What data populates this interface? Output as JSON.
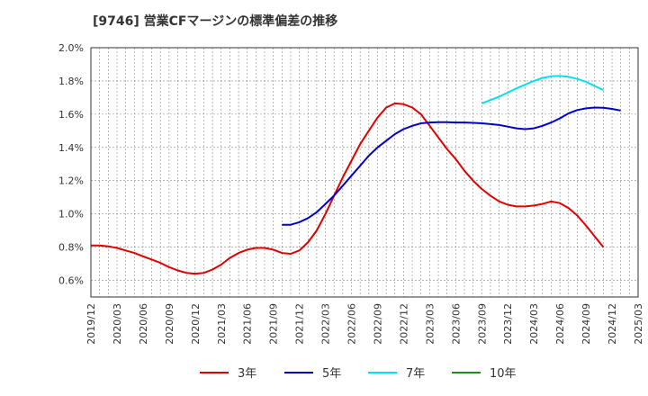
{
  "title": "[9746]  営業CFマージンの標準偏差の推移",
  "chart_data": {
    "type": "line",
    "title": "[9746]  営業CFマージンの標準偏差の推移",
    "xlabel": "",
    "ylabel": "",
    "ylim": [
      0.5,
      2.0
    ],
    "x_ticks": [
      "2019/12",
      "2020/03",
      "2020/06",
      "2020/09",
      "2020/12",
      "2021/03",
      "2021/06",
      "2021/09",
      "2021/12",
      "2022/03",
      "2022/06",
      "2022/09",
      "2022/12",
      "2023/03",
      "2023/06",
      "2023/09",
      "2023/12",
      "2024/03",
      "2024/06",
      "2024/09",
      "2024/12",
      "2025/03"
    ],
    "y_ticks": [
      "0.6%",
      "0.8%",
      "1.0%",
      "1.2%",
      "1.4%",
      "1.6%",
      "1.8%",
      "2.0%"
    ],
    "y_tick_values": [
      0.6,
      0.8,
      1.0,
      1.2,
      1.4,
      1.6,
      1.8,
      2.0
    ],
    "grid": true,
    "legend_position": "bottom",
    "series": [
      {
        "name": "3年",
        "color": "#e00000",
        "points": [
          [
            "2019/12",
            0.81
          ],
          [
            "2020/01",
            0.81
          ],
          [
            "2020/02",
            0.805
          ],
          [
            "2020/03",
            0.795
          ],
          [
            "2020/04",
            0.78
          ],
          [
            "2020/05",
            0.765
          ],
          [
            "2020/06",
            0.745
          ],
          [
            "2020/07",
            0.725
          ],
          [
            "2020/08",
            0.705
          ],
          [
            "2020/09",
            0.68
          ],
          [
            "2020/10",
            0.66
          ],
          [
            "2020/11",
            0.645
          ],
          [
            "2020/12",
            0.64
          ],
          [
            "2021/01",
            0.645
          ],
          [
            "2021/02",
            0.665
          ],
          [
            "2021/03",
            0.695
          ],
          [
            "2021/04",
            0.735
          ],
          [
            "2021/05",
            0.765
          ],
          [
            "2021/06",
            0.785
          ],
          [
            "2021/07",
            0.795
          ],
          [
            "2021/08",
            0.795
          ],
          [
            "2021/09",
            0.785
          ],
          [
            "2021/10",
            0.765
          ],
          [
            "2021/11",
            0.76
          ],
          [
            "2021/12",
            0.78
          ],
          [
            "2022/01",
            0.83
          ],
          [
            "2022/02",
            0.9
          ],
          [
            "2022/03",
            1.0
          ],
          [
            "2022/04",
            1.11
          ],
          [
            "2022/05",
            1.22
          ],
          [
            "2022/06",
            1.32
          ],
          [
            "2022/07",
            1.42
          ],
          [
            "2022/08",
            1.5
          ],
          [
            "2022/09",
            1.58
          ],
          [
            "2022/10",
            1.64
          ],
          [
            "2022/11",
            1.665
          ],
          [
            "2022/12",
            1.66
          ],
          [
            "2023/01",
            1.64
          ],
          [
            "2023/02",
            1.6
          ],
          [
            "2023/03",
            1.53
          ],
          [
            "2023/04",
            1.46
          ],
          [
            "2023/05",
            1.39
          ],
          [
            "2023/06",
            1.33
          ],
          [
            "2023/07",
            1.26
          ],
          [
            "2023/08",
            1.2
          ],
          [
            "2023/09",
            1.15
          ],
          [
            "2023/10",
            1.11
          ],
          [
            "2023/11",
            1.075
          ],
          [
            "2023/12",
            1.055
          ],
          [
            "2024/01",
            1.045
          ],
          [
            "2024/02",
            1.045
          ],
          [
            "2024/03",
            1.05
          ],
          [
            "2024/04",
            1.06
          ],
          [
            "2024/05",
            1.075
          ],
          [
            "2024/06",
            1.065
          ],
          [
            "2024/07",
            1.035
          ],
          [
            "2024/08",
            0.99
          ],
          [
            "2024/09",
            0.93
          ],
          [
            "2024/10",
            0.865
          ],
          [
            "2024/11",
            0.8
          ]
        ]
      },
      {
        "name": "5年",
        "color": "#0000cc",
        "points": [
          [
            "2021/10",
            0.935
          ],
          [
            "2021/11",
            0.935
          ],
          [
            "2021/12",
            0.95
          ],
          [
            "2022/01",
            0.975
          ],
          [
            "2022/02",
            1.01
          ],
          [
            "2022/03",
            1.06
          ],
          [
            "2022/04",
            1.11
          ],
          [
            "2022/05",
            1.17
          ],
          [
            "2022/06",
            1.23
          ],
          [
            "2022/07",
            1.29
          ],
          [
            "2022/08",
            1.35
          ],
          [
            "2022/09",
            1.4
          ],
          [
            "2022/10",
            1.44
          ],
          [
            "2022/11",
            1.48
          ],
          [
            "2022/12",
            1.51
          ],
          [
            "2023/01",
            1.53
          ],
          [
            "2023/02",
            1.545
          ],
          [
            "2023/03",
            1.55
          ],
          [
            "2023/04",
            1.552
          ],
          [
            "2023/05",
            1.552
          ],
          [
            "2023/06",
            1.55
          ],
          [
            "2023/07",
            1.55
          ],
          [
            "2023/08",
            1.548
          ],
          [
            "2023/09",
            1.545
          ],
          [
            "2023/10",
            1.54
          ],
          [
            "2023/11",
            1.535
          ],
          [
            "2023/12",
            1.525
          ],
          [
            "2024/01",
            1.515
          ],
          [
            "2024/02",
            1.51
          ],
          [
            "2024/03",
            1.515
          ],
          [
            "2024/04",
            1.53
          ],
          [
            "2024/05",
            1.55
          ],
          [
            "2024/06",
            1.575
          ],
          [
            "2024/07",
            1.605
          ],
          [
            "2024/08",
            1.625
          ],
          [
            "2024/09",
            1.635
          ],
          [
            "2024/10",
            1.64
          ],
          [
            "2024/11",
            1.638
          ],
          [
            "2024/12",
            1.632
          ],
          [
            "2025/01",
            1.622
          ]
        ]
      },
      {
        "name": "7年",
        "color": "#00e0ee",
        "points": [
          [
            "2023/09",
            1.665
          ],
          [
            "2023/10",
            1.685
          ],
          [
            "2023/11",
            1.705
          ],
          [
            "2023/12",
            1.73
          ],
          [
            "2024/01",
            1.755
          ],
          [
            "2024/02",
            1.778
          ],
          [
            "2024/03",
            1.8
          ],
          [
            "2024/04",
            1.818
          ],
          [
            "2024/05",
            1.828
          ],
          [
            "2024/06",
            1.83
          ],
          [
            "2024/07",
            1.825
          ],
          [
            "2024/08",
            1.812
          ],
          [
            "2024/09",
            1.795
          ],
          [
            "2024/10",
            1.77
          ],
          [
            "2024/11",
            1.745
          ]
        ]
      },
      {
        "name": "10年",
        "color": "#228b22",
        "points": []
      }
    ]
  }
}
